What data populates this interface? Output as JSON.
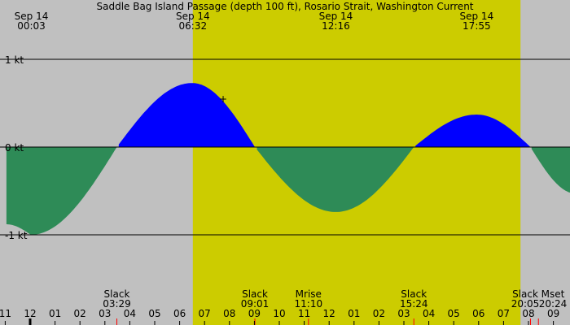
{
  "chart_data": {
    "type": "area",
    "title": "Saddle Bag Island Passage (depth 100 ft), Rosario Strait, Washington Current",
    "units": "kt",
    "ylim": [
      -1.7,
      1.35
    ],
    "xlim_hours": [
      -0.95,
      21.9
    ],
    "y_ticks": [
      {
        "value": 1,
        "label": "1 kt"
      },
      {
        "value": 0,
        "label": "0 kt"
      },
      {
        "value": -1,
        "label": "-1 kt"
      }
    ],
    "top_labels": [
      {
        "date": "Sep 14",
        "time": "00:03",
        "hour": 0.05
      },
      {
        "date": "Sep 14",
        "time": "06:32",
        "hour": 6.53
      },
      {
        "date": "Sep 14",
        "time": "12:16",
        "hour": 12.27
      },
      {
        "date": "Sep 14",
        "time": "17:55",
        "hour": 17.92
      }
    ],
    "daylight": {
      "start_hour": 6.53,
      "end_hour": 19.68
    },
    "x_ticks": [
      {
        "hour": -1,
        "label": "11"
      },
      {
        "hour": 0,
        "label": "12"
      },
      {
        "hour": 1,
        "label": "01"
      },
      {
        "hour": 2,
        "label": "02"
      },
      {
        "hour": 3,
        "label": "03"
      },
      {
        "hour": 4,
        "label": "04"
      },
      {
        "hour": 5,
        "label": "05"
      },
      {
        "hour": 6,
        "label": "06"
      },
      {
        "hour": 7,
        "label": "07"
      },
      {
        "hour": 8,
        "label": "08"
      },
      {
        "hour": 9,
        "label": "09"
      },
      {
        "hour": 10,
        "label": "10"
      },
      {
        "hour": 11,
        "label": "11"
      },
      {
        "hour": 12,
        "label": "12"
      },
      {
        "hour": 13,
        "label": "01"
      },
      {
        "hour": 14,
        "label": "02"
      },
      {
        "hour": 15,
        "label": "03"
      },
      {
        "hour": 16,
        "label": "04"
      },
      {
        "hour": 17,
        "label": "05"
      },
      {
        "hour": 18,
        "label": "06"
      },
      {
        "hour": 19,
        "label": "07"
      },
      {
        "hour": 20,
        "label": "08"
      },
      {
        "hour": 21,
        "label": "09"
      }
    ],
    "events": [
      {
        "name": "Slack",
        "time": "03:29",
        "hour": 3.48
      },
      {
        "name": "Slack",
        "time": "09:01",
        "hour": 9.02
      },
      {
        "name": "Mrise",
        "time": "11:10",
        "hour": 11.17
      },
      {
        "name": "Slack",
        "time": "15:24",
        "hour": 15.4
      },
      {
        "name": "Slack",
        "time": "20:05",
        "hour": 20.08
      },
      {
        "name": "Mset",
        "time": "20:24",
        "hour": 20.4
      }
    ],
    "series": [
      {
        "values": [
          {
            "hour": -0.95,
            "kt": -0.88
          },
          {
            "hour": 0.03,
            "kt": -1.0
          },
          {
            "hour": 3.48,
            "kt": 0.0
          },
          {
            "hour": 6.5,
            "kt": 0.73
          },
          {
            "hour": 9.02,
            "kt": 0.0
          },
          {
            "hour": 12.27,
            "kt": -0.74
          },
          {
            "hour": 15.4,
            "kt": 0.0
          },
          {
            "hour": 17.92,
            "kt": 0.37
          },
          {
            "hour": 20.08,
            "kt": 0.0
          },
          {
            "hour": 21.9,
            "kt": -0.53
          }
        ]
      }
    ],
    "colors": {
      "background": "#c0c0c0",
      "daylight": "#cccc00",
      "flood": "#0000ff",
      "ebb": "#2e8b57",
      "event_marker": "#ff0000",
      "midnight_marker": "#000000"
    }
  }
}
